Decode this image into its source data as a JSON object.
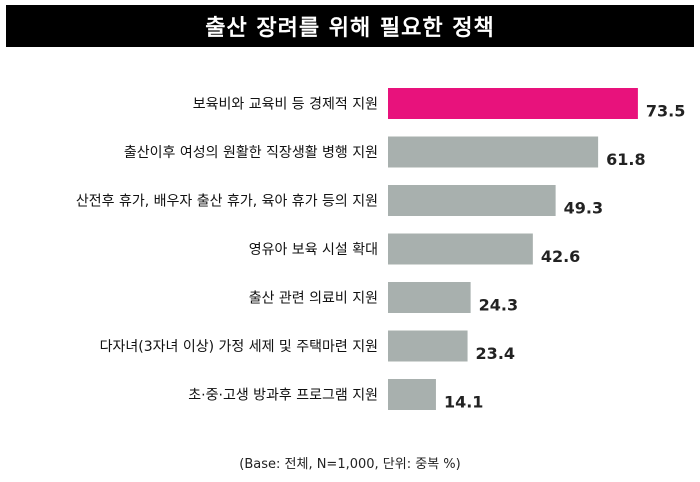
{
  "chart_data": {
    "type": "bar",
    "orientation": "horizontal",
    "title": "출산 장려를 위해 필요한 정책",
    "categories": [
      "보육비와 교육비 등 경제적 지원",
      "출산이후 여성의 원활한 직장생활 병행 지원",
      "산전후 휴가, 배우자 출산 휴가, 육아 휴가 등의 지원",
      "영유아 보육 시설 확대",
      "출산 관련 의료비 지원",
      "다자녀(3자녀 이상) 가정 세제 및 주택마련 지원",
      "초·중·고생 방과후 프로그램 지원"
    ],
    "values": [
      73.5,
      61.8,
      49.3,
      42.6,
      24.3,
      23.4,
      14.1
    ],
    "value_labels": [
      "73.5",
      "61.8",
      "49.3",
      "42.6",
      "24.3",
      "23.4",
      "14.1"
    ],
    "xlim": [
      0,
      80
    ],
    "highlight_index": 0,
    "colors": {
      "highlight": "#e8127c",
      "bar": "#a8b0ae"
    },
    "grid": false,
    "legend": "none"
  },
  "footnote": "(Base: 전체, N=1,000, 단위: 중복 %)"
}
